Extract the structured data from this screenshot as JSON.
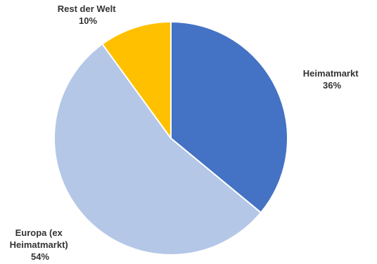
{
  "chart_data": {
    "type": "pie",
    "slices": [
      {
        "name": "Heimatmarkt",
        "label_lines": [
          "Heimatmarkt"
        ],
        "value": 36,
        "pct_label": "36%",
        "color": "#4472C4"
      },
      {
        "name": "Europa (ex Heimatmarkt)",
        "label_lines": [
          "Europa (ex",
          "Heimatmarkt)"
        ],
        "value": 54,
        "pct_label": "54%",
        "color": "#B4C7E7"
      },
      {
        "name": "Rest der Welt",
        "label_lines": [
          "Rest der Welt"
        ],
        "value": 10,
        "pct_label": "10%",
        "color": "#FFC000"
      }
    ],
    "start": "12 o'clock",
    "direction": "clockwise",
    "slice_border_color": "#ffffff"
  }
}
